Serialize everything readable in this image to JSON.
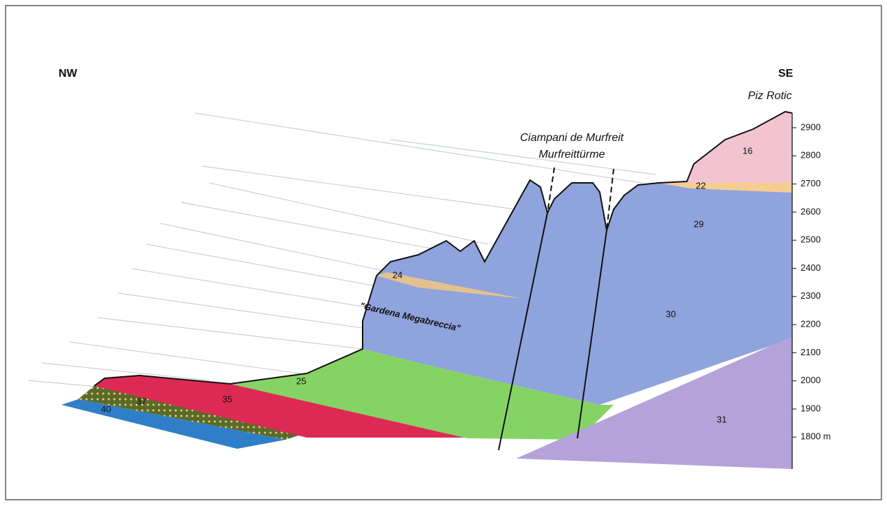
{
  "compass": {
    "left": "NW",
    "right": "SE"
  },
  "peaks": {
    "summit": "Piz Rotic",
    "towers_name": "Ciampani de Murfreit",
    "towers_name_german": "Murfreittürme"
  },
  "formation_label": "\"Gardena Megabreccia\"",
  "units": [
    "40",
    "37",
    "35",
    "25",
    "24",
    "22",
    "16",
    "29",
    "30",
    "31"
  ],
  "elevation_scale": [
    "2900",
    "2800",
    "2700",
    "2600",
    "2500",
    "2400",
    "2300",
    "2200",
    "2100",
    "2000",
    "1900",
    "1800 m"
  ]
}
